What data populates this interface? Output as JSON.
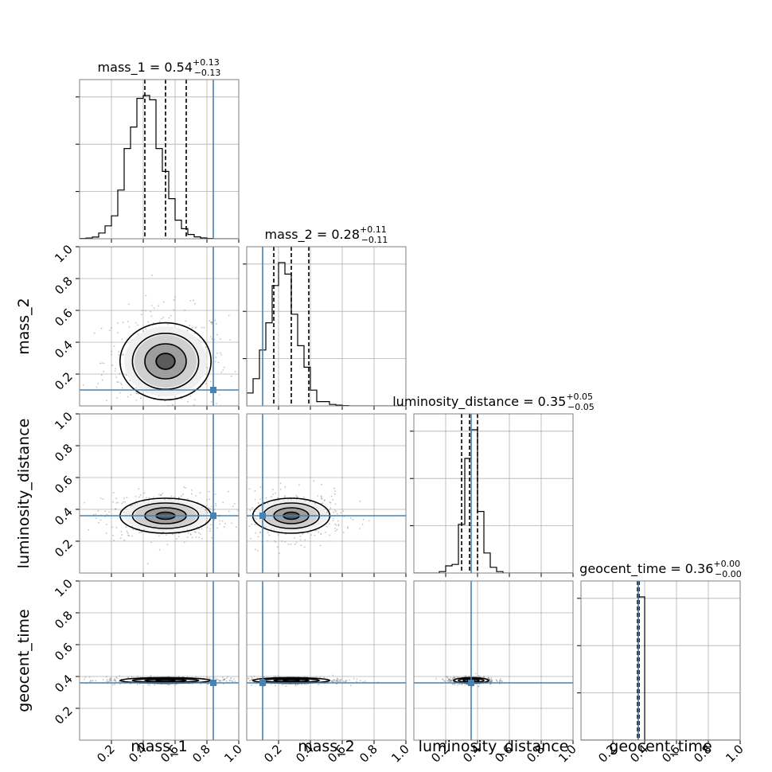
{
  "chart_data": {
    "type": "corner",
    "parameters": [
      "mass_1",
      "mass_2",
      "luminosity_distance",
      "geocent_time"
    ],
    "axis_range": [
      0,
      1
    ],
    "tick_labels": [
      "0.2",
      "0.4",
      "0.6",
      "0.8",
      "1.0"
    ],
    "tick_values": [
      0.2,
      0.4,
      0.6,
      0.8,
      1.0
    ],
    "grid": true,
    "truth_color": "#4682b4",
    "titles": [
      {
        "name": "mass_1",
        "median": "0.54",
        "plus": "+0.13",
        "minus": "−0.13"
      },
      {
        "name": "mass_2",
        "median": "0.28",
        "plus": "+0.11",
        "minus": "−0.11"
      },
      {
        "name": "luminosity_distance",
        "median": "0.35",
        "plus": "+0.05",
        "minus": "−0.05"
      },
      {
        "name": "geocent_time",
        "median": "0.36",
        "plus": "+0.00",
        "minus": "−0.00"
      }
    ],
    "truths": [
      0.84,
      0.1,
      0.36,
      0.36
    ],
    "quantiles": [
      [
        0.41,
        0.54,
        0.67
      ],
      [
        0.17,
        0.28,
        0.39
      ],
      [
        0.3,
        0.35,
        0.4
      ],
      [
        0.355,
        0.36,
        0.365
      ]
    ],
    "means": [
      0.54,
      0.28,
      0.36,
      0.375
    ],
    "sigmas": [
      0.13,
      0.11,
      0.05,
      0.008
    ],
    "histograms": [
      {
        "bin_edges_start": 0.0,
        "bin_width": 0.04,
        "counts": [
          0.002,
          0.005,
          0.012,
          0.04,
          0.09,
          0.16,
          0.34,
          0.63,
          0.78,
          0.98,
          1.0,
          0.97,
          0.63,
          0.47,
          0.28,
          0.13,
          0.07,
          0.03,
          0.013,
          0.006,
          0.002,
          0.0,
          0.0,
          0.0,
          0.0
        ]
      },
      {
        "bin_edges_start": 0.0,
        "bin_width": 0.04,
        "counts": [
          0.09,
          0.19,
          0.39,
          0.58,
          0.84,
          1.0,
          0.92,
          0.64,
          0.42,
          0.27,
          0.11,
          0.03,
          0.03,
          0.01,
          0.005,
          0.002,
          0.0,
          0.0,
          0.0,
          0.0,
          0.0,
          0.0,
          0.0,
          0.0,
          0.0
        ]
      },
      {
        "bin_edges_start": 0.0,
        "bin_width": 0.04,
        "counts": [
          0,
          0,
          0,
          0,
          0.01,
          0.05,
          0.06,
          0.34,
          0.8,
          1.0,
          0.43,
          0.14,
          0.04,
          0.01,
          0,
          0,
          0,
          0,
          0,
          0,
          0,
          0,
          0,
          0,
          0
        ]
      },
      {
        "bin_edges_start": 0.0,
        "bin_width": 0.04,
        "counts": [
          0,
          0,
          0,
          0,
          0,
          0,
          0,
          0,
          0,
          1.0,
          0,
          0,
          0,
          0,
          0,
          0,
          0,
          0,
          0,
          0,
          0,
          0,
          0,
          0,
          0
        ]
      }
    ]
  }
}
